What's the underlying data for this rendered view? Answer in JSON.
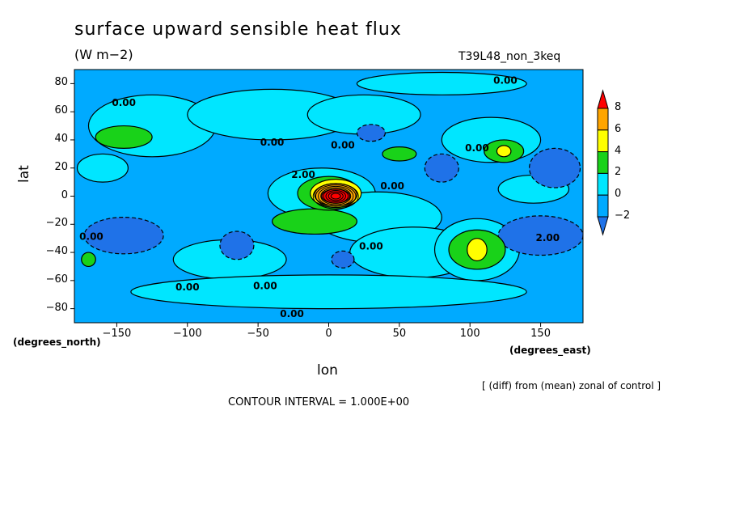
{
  "chart_data": {
    "type": "contour-map",
    "title": "surface upward sensible heat flux",
    "units": "(W m−2)",
    "run_label": "T39L48_non_3keq",
    "xlabel": "lon",
    "xunit_label": "(degrees_east)",
    "ylabel": "lat",
    "yunit_label": "(degrees_north)",
    "xlim": [
      -180,
      180
    ],
    "ylim": [
      -90,
      90
    ],
    "x_ticks": [
      -150,
      -100,
      -50,
      0,
      50,
      100,
      150
    ],
    "x_tick_labels": [
      "−150",
      "−100",
      "−50",
      "0",
      "50",
      "100",
      "150"
    ],
    "y_ticks": [
      80,
      60,
      40,
      20,
      0,
      -20,
      -40,
      -60,
      -80
    ],
    "y_tick_labels": [
      "80",
      "60",
      "40",
      "20",
      "0",
      "−20",
      "−40",
      "−60",
      "−80"
    ],
    "colorbar": {
      "levels": [
        -2,
        0,
        2,
        4,
        6,
        8
      ],
      "level_labels": [
        "−2",
        "0",
        "2",
        "4",
        "6",
        "8"
      ],
      "band_colors": [
        "#1f72e8",
        "#00aaff",
        "#00e6ff",
        "#19d219",
        "#ffff00",
        "#ffa500",
        "#ff0000"
      ]
    },
    "contour_labels": [
      {
        "text": "0.00",
        "lon": -145,
        "lat": 64
      },
      {
        "text": "0.00",
        "lon": -40,
        "lat": 36
      },
      {
        "text": "0.00",
        "lon": 10,
        "lat": 34
      },
      {
        "text": "0.00",
        "lon": 125,
        "lat": 80
      },
      {
        "text": "0.00",
        "lon": 105,
        "lat": 32
      },
      {
        "text": "0.00",
        "lon": 45,
        "lat": 5
      },
      {
        "text": "2.00",
        "lon": -18,
        "lat": 13
      },
      {
        "text": "0.00",
        "lon": -168,
        "lat": -31
      },
      {
        "text": "0.00",
        "lon": 30,
        "lat": -38
      },
      {
        "text": "2.00",
        "lon": 155,
        "lat": -32
      },
      {
        "text": "0.00",
        "lon": -100,
        "lat": -67
      },
      {
        "text": "0.00",
        "lon": -45,
        "lat": -66
      },
      {
        "text": "0.00",
        "lon": -26,
        "lat": -86
      }
    ],
    "features": [
      {
        "kind": "positive",
        "level": 2,
        "lon": -145,
        "lat": 42
      },
      {
        "kind": "positive",
        "level": 8,
        "lon": 5,
        "lat": 0
      },
      {
        "kind": "positive",
        "level": 4,
        "lon": 105,
        "lat": -38
      },
      {
        "kind": "positive",
        "level": 4,
        "lon": 124,
        "lat": 32
      },
      {
        "kind": "negative",
        "level": -2,
        "lon": -145,
        "lat": -28
      },
      {
        "kind": "negative",
        "level": -2,
        "lon": 150,
        "lat": -28
      },
      {
        "kind": "negative",
        "level": -2,
        "lon": 160,
        "lat": 20
      },
      {
        "kind": "negative",
        "level": -2,
        "lon": 80,
        "lat": 20
      }
    ],
    "grid": false
  },
  "footer": {
    "note": "[ (diff) from (mean) zonal of control ]",
    "interval": "CONTOUR INTERVAL = 1.000E+00"
  }
}
